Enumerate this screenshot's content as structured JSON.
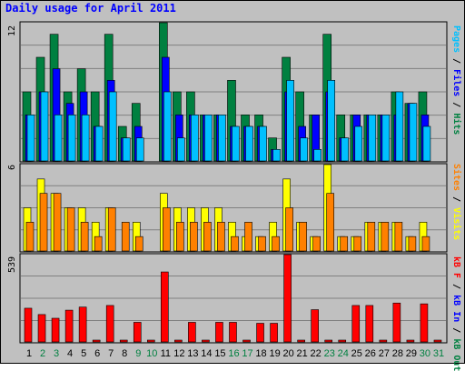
{
  "title": "Daily usage for April 2011",
  "colors": {
    "hits": "#008040",
    "files": "#0000ff",
    "pages": "#00c0ff",
    "visits": "#ffff00",
    "sites": "#ff8000",
    "kbin": "#0000ff",
    "kbout": "#008040",
    "kbf": "#ff0000",
    "weekend_day_label": "#008040"
  },
  "right_labels": {
    "top": [
      {
        "text": "Pages",
        "color": "#00c0ff"
      },
      {
        "text": " / ",
        "color": "#000000"
      },
      {
        "text": "Files",
        "color": "#0000ff"
      },
      {
        "text": " / ",
        "color": "#000000"
      },
      {
        "text": "Hits",
        "color": "#008040"
      }
    ],
    "mid": [
      {
        "text": "Sites",
        "color": "#ff8000"
      },
      {
        "text": " / ",
        "color": "#000000"
      },
      {
        "text": "Visits",
        "color": "#ffff00"
      }
    ],
    "bot": [
      {
        "text": "kB F",
        "color": "#ff0000"
      },
      {
        "text": " / ",
        "color": "#000000"
      },
      {
        "text": "kB In",
        "color": "#0000ff"
      },
      {
        "text": " / ",
        "color": "#000000"
      },
      {
        "text": "kB Out",
        "color": "#008040"
      }
    ]
  },
  "chart_data": {
    "type": "bar",
    "title": "Daily usage for April 2011",
    "days": [
      "1",
      "2",
      "3",
      "4",
      "5",
      "6",
      "7",
      "8",
      "9",
      "10",
      "11",
      "12",
      "13",
      "14",
      "15",
      "16",
      "17",
      "18",
      "19",
      "20",
      "21",
      "22",
      "23",
      "24",
      "25",
      "26",
      "27",
      "28",
      "29",
      "30",
      "31"
    ],
    "weekend_days": [
      "2",
      "3",
      "9",
      "10",
      "16",
      "17",
      "23",
      "24",
      "30",
      "31"
    ],
    "panels": [
      {
        "name": "hits-files-pages",
        "max_label": "12",
        "ymax": 12,
        "series": [
          {
            "name": "Hits",
            "color_key": "hits",
            "values": [
              6,
              9,
              11,
              6,
              8,
              6,
              11,
              3,
              5,
              0,
              12,
              6,
              6,
              4,
              4,
              7,
              4,
              4,
              2,
              9,
              6,
              4,
              11,
              4,
              4,
              4,
              4,
              6,
              5,
              6,
              0
            ]
          },
          {
            "name": "Files",
            "color_key": "files",
            "values": [
              4,
              6,
              8,
              5,
              6,
              3,
              7,
              2,
              3,
              0,
              9,
              4,
              4,
              4,
              4,
              3,
              3,
              3,
              1,
              6,
              3,
              4,
              6,
              2,
              4,
              4,
              4,
              4,
              5,
              4,
              0
            ]
          },
          {
            "name": "Pages",
            "color_key": "pages",
            "values": [
              4,
              6,
              4,
              4,
              4,
              3,
              6,
              2,
              2,
              0,
              6,
              2,
              4,
              4,
              4,
              3,
              3,
              3,
              1,
              7,
              2,
              1,
              7,
              2,
              3,
              4,
              4,
              6,
              5,
              3,
              0
            ]
          }
        ]
      },
      {
        "name": "visits-sites",
        "max_label": "6",
        "ymax": 6,
        "series": [
          {
            "name": "Visits",
            "color_key": "visits",
            "values": [
              3,
              5,
              4,
              3,
              3,
              2,
              3,
              0,
              2,
              0,
              4,
              3,
              3,
              3,
              3,
              2,
              1,
              1,
              2,
              5,
              2,
              1,
              6,
              1,
              1,
              2,
              2,
              2,
              1,
              2,
              0
            ]
          },
          {
            "name": "Sites",
            "color_key": "sites",
            "values": [
              2,
              4,
              4,
              3,
              2,
              1,
              3,
              2,
              1,
              0,
              3,
              2,
              2,
              2,
              2,
              1,
              2,
              1,
              1,
              3,
              2,
              1,
              4,
              1,
              1,
              2,
              2,
              2,
              1,
              1,
              0
            ]
          }
        ]
      },
      {
        "name": "kbytes",
        "max_label": "539",
        "ymax": 539,
        "series": [
          {
            "name": "kB F",
            "color_key": "kbf",
            "values": [
              208,
              169,
              146,
              196,
              215,
              0,
              225,
              0,
              121,
              0,
              432,
              0,
              121,
              0,
              121,
              121,
              0,
              115,
              115,
              539,
              0,
              199,
              0,
              0,
              225,
              225,
              0,
              240,
              0,
              235,
              0
            ]
          }
        ]
      }
    ]
  }
}
